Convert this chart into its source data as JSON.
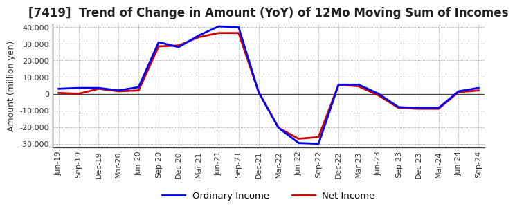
{
  "title": "[7419]  Trend of Change in Amount (YoY) of 12Mo Moving Sum of Incomes",
  "ylabel": "Amount (million yen)",
  "ylim": [
    -32000,
    42000
  ],
  "yticks": [
    -30000,
    -20000,
    -10000,
    0,
    10000,
    20000,
    30000,
    40000
  ],
  "legend_labels": [
    "Ordinary Income",
    "Net Income"
  ],
  "line_colors": [
    "#0000ff",
    "#cc0000"
  ],
  "background_color": "#ffffff",
  "grid_color": "#888888",
  "dates": [
    "Jun-19",
    "Sep-19",
    "Dec-19",
    "Mar-20",
    "Jun-20",
    "Sep-20",
    "Dec-20",
    "Mar-21",
    "Jun-21",
    "Sep-21",
    "Dec-21",
    "Mar-22",
    "Jun-22",
    "Sep-22",
    "Dec-22",
    "Mar-23",
    "Jun-23",
    "Sep-23",
    "Dec-23",
    "Mar-24",
    "Jun-24",
    "Sep-24"
  ],
  "ordinary_income": [
    3000,
    3500,
    3500,
    2000,
    4000,
    31000,
    28000,
    35000,
    40500,
    40000,
    1000,
    -20500,
    -29500,
    -30000,
    5500,
    5500,
    0,
    -8000,
    -8500,
    -8500,
    1500,
    3500
  ],
  "net_income": [
    500,
    0,
    3000,
    1500,
    2000,
    28500,
    29000,
    34000,
    36500,
    36500,
    1000,
    -20500,
    -27000,
    -26000,
    5500,
    4500,
    -1000,
    -8500,
    -9000,
    -9000,
    1000,
    2000
  ]
}
